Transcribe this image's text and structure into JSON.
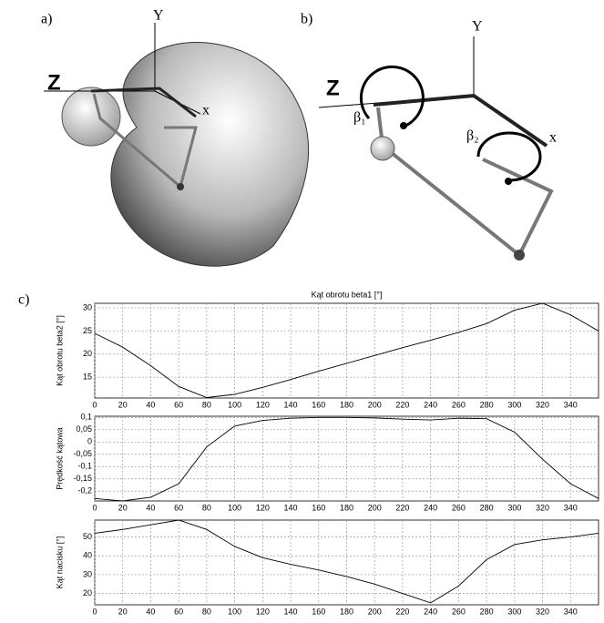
{
  "figure": {
    "panel_a_label": "a)",
    "panel_b_label": "b)",
    "panel_c_label": "c)",
    "a_z_label": "Z",
    "a_y_label": "Y",
    "a_x_label": "x",
    "b_z_label": "Z",
    "b_y_label": "Y",
    "b_x_label": "x",
    "beta1_label": "β₁",
    "beta2_label": "β₂"
  },
  "chart_data": [
    {
      "type": "line",
      "title": "Kąt obrotu beta1 [°]",
      "y_label": "Kąt obrotu beta2 [°]",
      "x": [
        0,
        20,
        40,
        60,
        80,
        100,
        120,
        140,
        160,
        180,
        200,
        220,
        240,
        260,
        280,
        300,
        320,
        340,
        360
      ],
      "series": [
        {
          "color": "#000000",
          "values": [
            24.5,
            21.5,
            17.5,
            13,
            10.6,
            11.3,
            12.8,
            14.5,
            16.3,
            18,
            19.7,
            21.4,
            23,
            24.7,
            26.6,
            29.5,
            31,
            28.5,
            25
          ]
        }
      ],
      "xlim": [
        0,
        360
      ],
      "xticks": [
        0,
        20,
        40,
        60,
        80,
        100,
        120,
        140,
        160,
        180,
        200,
        220,
        240,
        260,
        280,
        300,
        320,
        340
      ],
      "ylim": [
        10.5,
        31
      ],
      "yticks": [
        15,
        20,
        25,
        30
      ],
      "grid": true
    },
    {
      "type": "line",
      "y_label": "Prędkość kątowa",
      "x": [
        0,
        20,
        40,
        60,
        80,
        100,
        120,
        140,
        160,
        180,
        200,
        220,
        240,
        260,
        280,
        300,
        320,
        340,
        360
      ],
      "series": [
        {
          "color": "#000000",
          "values": [
            -0.23,
            -0.24,
            -0.225,
            -0.17,
            -0.02,
            0.065,
            0.088,
            0.097,
            0.1,
            0.1,
            0.098,
            0.093,
            0.09,
            0.097,
            0.095,
            0.04,
            -0.07,
            -0.17,
            -0.23
          ]
        }
      ],
      "xlim": [
        0,
        360
      ],
      "xticks": [
        0,
        20,
        40,
        60,
        80,
        100,
        120,
        140,
        160,
        180,
        200,
        220,
        240,
        260,
        280,
        300,
        320,
        340
      ],
      "ylim": [
        -0.24,
        0.105
      ],
      "yticks": [
        {
          "value": 0.1,
          "label": "0,1"
        },
        {
          "value": 0.05,
          "label": "0,05"
        },
        0,
        {
          "value": -0.05,
          "label": "-0,05"
        },
        {
          "value": -0.1,
          "label": "-0,1"
        },
        {
          "value": -0.15,
          "label": "-0,15"
        },
        {
          "value": -0.2,
          "label": "-0,2"
        }
      ],
      "grid": true
    },
    {
      "type": "line",
      "y_label": "Kąt nacisku [°]",
      "x": [
        0,
        20,
        40,
        60,
        80,
        100,
        120,
        140,
        160,
        180,
        200,
        220,
        240,
        260,
        280,
        300,
        320,
        340,
        360
      ],
      "series": [
        {
          "color": "#000000",
          "values": [
            52,
            54,
            56.5,
            59,
            54,
            45,
            39,
            35.5,
            32.5,
            29,
            25,
            20,
            15,
            24,
            38,
            46,
            48.5,
            50,
            52
          ]
        }
      ],
      "xlim": [
        0,
        360
      ],
      "xticks": [
        0,
        20,
        40,
        60,
        80,
        100,
        120,
        140,
        160,
        180,
        200,
        220,
        240,
        260,
        280,
        300,
        320,
        340
      ],
      "ylim": [
        14,
        59
      ],
      "yticks": [
        20,
        30,
        40,
        50
      ],
      "grid": true
    }
  ]
}
